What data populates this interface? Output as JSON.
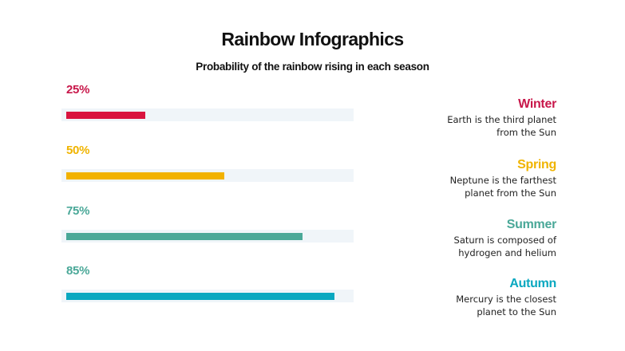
{
  "header": {
    "title": "Rainbow Infographics",
    "subtitle": "Probability of the rainbow rising in each season"
  },
  "colors": {
    "winter": "#d9143f",
    "spring": "#f2b200",
    "summer": "#4aa898",
    "autumn": "#0aa8c0",
    "track": "#f0f5f9"
  },
  "bars": [
    {
      "label": "25%",
      "value": 25,
      "label_color": "#c8174a",
      "bar_color": "#d9143f"
    },
    {
      "label": "50%",
      "value": 50,
      "label_color": "#f0b400",
      "bar_color": "#f2b200"
    },
    {
      "label": "75%",
      "value": 75,
      "label_color": "#4aa898",
      "bar_color": "#4aa898"
    },
    {
      "label": "85%",
      "value": 85,
      "label_color": "#4aa898",
      "bar_color": "#0aa8c0"
    }
  ],
  "seasons": [
    {
      "name": "Winter",
      "color": "#c8174a",
      "line1": "Earth is the third planet",
      "line2": "from the Sun"
    },
    {
      "name": "Spring",
      "color": "#f0b400",
      "line1": "Neptune is the farthest",
      "line2": "planet from the Sun"
    },
    {
      "name": "Summer",
      "color": "#4aa898",
      "line1": "Saturn is composed of",
      "line2": "hydrogen and helium"
    },
    {
      "name": "Autumn",
      "color": "#0aa8c0",
      "line1": "Mercury is the closest",
      "line2": "planet to the Sun"
    }
  ],
  "chart_data": {
    "type": "bar",
    "orientation": "horizontal",
    "title": "Rainbow Infographics",
    "subtitle": "Probability of the rainbow rising in each season",
    "categories": [
      "Winter",
      "Spring",
      "Summer",
      "Autumn"
    ],
    "values": [
      25,
      50,
      75,
      85
    ],
    "value_labels": [
      "25%",
      "50%",
      "75%",
      "85%"
    ],
    "xlabel": "",
    "ylabel": "",
    "xlim": [
      0,
      100
    ],
    "grid": false,
    "legend": "right-side descriptive text per season"
  }
}
